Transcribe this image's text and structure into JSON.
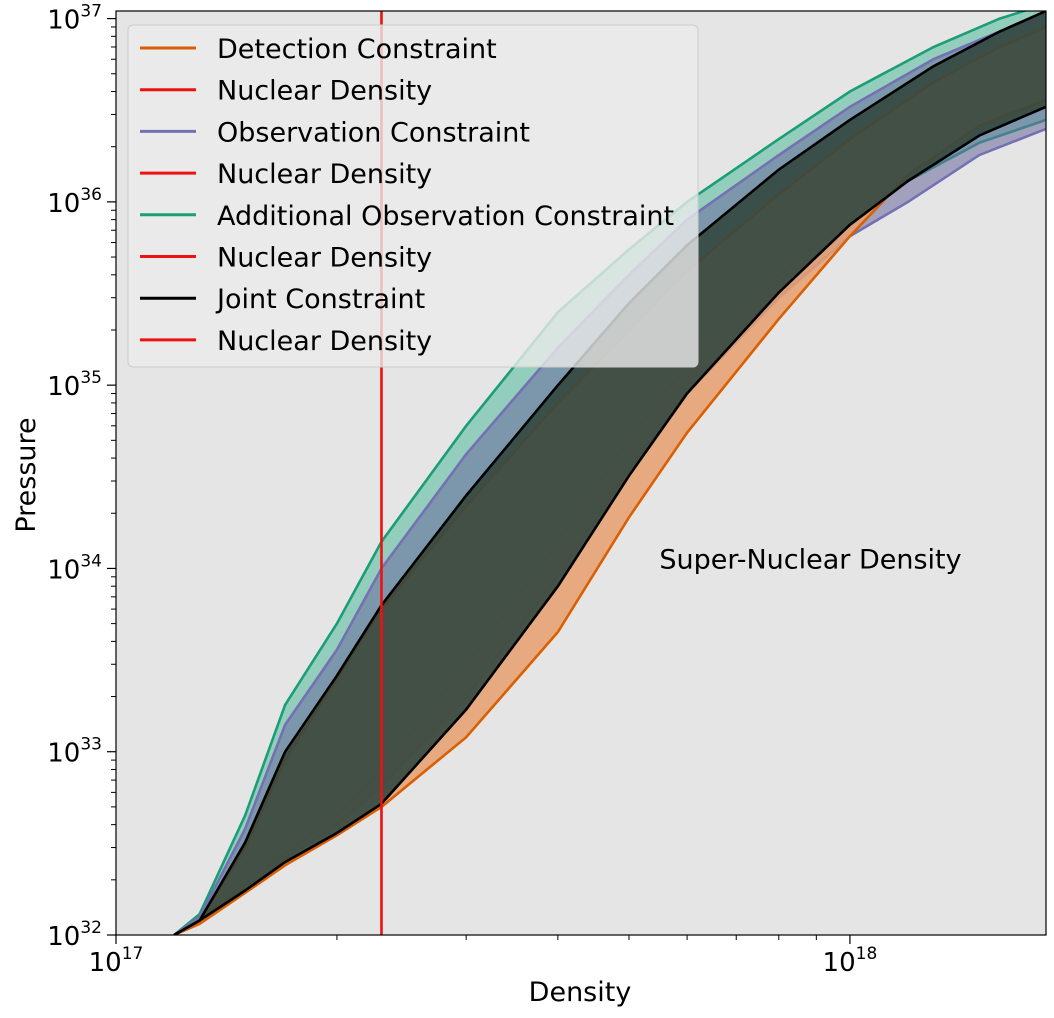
{
  "chart_data": {
    "type": "area",
    "xlabel": "Density",
    "ylabel": "Pressure",
    "xscale": "log",
    "yscale": "log",
    "xlim": [
      1e+17,
      1.85e+18
    ],
    "ylim": [
      1e+32,
      1.1e+37
    ],
    "x_ticks": [
      {
        "value": 1e+17,
        "base": "10",
        "exp": "17"
      },
      {
        "value": 1e+18,
        "base": "10",
        "exp": "18"
      }
    ],
    "y_ticks": [
      {
        "value": 1e+32,
        "base": "10",
        "exp": "32"
      },
      {
        "value": 1e+33,
        "base": "10",
        "exp": "33"
      },
      {
        "value": 1e+34,
        "base": "10",
        "exp": "34"
      },
      {
        "value": 1e+35,
        "base": "10",
        "exp": "35"
      },
      {
        "value": 1e+36,
        "base": "10",
        "exp": "36"
      },
      {
        "value": 1e+37,
        "base": "10",
        "exp": "37"
      }
    ],
    "background": "#e5e5e5",
    "grid": false,
    "legend_position": "top-left",
    "legend": [
      {
        "label": "Detection Constraint",
        "color": "#d95f02"
      },
      {
        "label": "Nuclear Density",
        "color": "#ee1111"
      },
      {
        "label": "Observation Constraint",
        "color": "#7570b3"
      },
      {
        "label": "Nuclear Density",
        "color": "#ee1111"
      },
      {
        "label": "Additional Observation Constraint",
        "color": "#1b9e77"
      },
      {
        "label": "Nuclear Density",
        "color": "#ee1111"
      },
      {
        "label": "Joint Constraint",
        "color": "#000000"
      },
      {
        "label": "Nuclear Density",
        "color": "#ee1111"
      }
    ],
    "vline": {
      "x": 2.3e+17,
      "color": "#ee1111"
    },
    "annotation": {
      "text": "Super-Nuclear Density",
      "x": 5.5e+17,
      "y": 1e+34
    },
    "series": [
      {
        "name": "Additional Observation Constraint",
        "color": "#1b9e77",
        "fill": "#66c2a5",
        "fill_opacity": 0.65,
        "upper": [
          [
            1.2e+17,
            1e+32
          ],
          [
            1.3e+17,
            1.3e+32
          ],
          [
            1.5e+17,
            4.5e+32
          ],
          [
            1.7e+17,
            1.8e+33
          ],
          [
            2e+17,
            5e+33
          ],
          [
            2.3e+17,
            1.4e+34
          ],
          [
            3e+17,
            6e+34
          ],
          [
            4e+17,
            2.5e+35
          ],
          [
            5e+17,
            5.5e+35
          ],
          [
            6e+17,
            1e+36
          ],
          [
            8e+17,
            2.2e+36
          ],
          [
            1e+18,
            4e+36
          ],
          [
            1.3e+18,
            7e+36
          ],
          [
            1.6e+18,
            1e+37
          ],
          [
            1.85e+18,
            1.2e+37
          ]
        ],
        "lower": [
          [
            1.85e+18,
            2.8e+36
          ],
          [
            1.5e+18,
            2.1e+36
          ],
          [
            1.2e+18,
            1.3e+36
          ],
          [
            1e+18,
            8e+35
          ],
          [
            8e+17,
            4e+35
          ],
          [
            6e+17,
            1.3e+35
          ],
          [
            5e+17,
            5e+34
          ],
          [
            4e+17,
            1.4e+34
          ],
          [
            3e+17,
            3e+33
          ],
          [
            2.3e+17,
            8e+32
          ],
          [
            2e+17,
            4.5e+32
          ],
          [
            1.7e+17,
            2.8e+32
          ],
          [
            1.5e+17,
            1.9e+32
          ],
          [
            1.3e+17,
            1.2e+32
          ],
          [
            1.2e+17,
            1e+32
          ]
        ]
      },
      {
        "name": "Observation Constraint",
        "color": "#7570b3",
        "fill": "#6a6a9e",
        "fill_opacity": 0.55,
        "upper": [
          [
            1.2e+17,
            1e+32
          ],
          [
            1.3e+17,
            1.25e+32
          ],
          [
            1.5e+17,
            3.8e+32
          ],
          [
            1.7e+17,
            1.4e+33
          ],
          [
            2e+17,
            3.6e+33
          ],
          [
            2.3e+17,
            1e+34
          ],
          [
            3e+17,
            4.2e+34
          ],
          [
            4e+17,
            1.6e+35
          ],
          [
            5e+17,
            4e+35
          ],
          [
            6e+17,
            8e+35
          ],
          [
            8e+17,
            1.8e+36
          ],
          [
            1e+18,
            3.3e+36
          ],
          [
            1.3e+18,
            6e+36
          ],
          [
            1.6e+18,
            8.5e+36
          ],
          [
            1.85e+18,
            1.05e+37
          ]
        ],
        "lower": [
          [
            1.85e+18,
            2.5e+36
          ],
          [
            1.5e+18,
            1.8e+36
          ],
          [
            1.2e+18,
            1e+36
          ],
          [
            1e+18,
            6.5e+35
          ],
          [
            8e+17,
            3e+35
          ],
          [
            6e+17,
            9e+34
          ],
          [
            5e+17,
            3.5e+34
          ],
          [
            4e+17,
            9e+33
          ],
          [
            3e+17,
            2e+33
          ],
          [
            2.3e+17,
            6.5e+32
          ],
          [
            2e+17,
            4e+32
          ],
          [
            1.7e+17,
            2.6e+32
          ],
          [
            1.5e+17,
            1.8e+32
          ],
          [
            1.3e+17,
            1.2e+32
          ],
          [
            1.2e+17,
            1e+32
          ]
        ]
      },
      {
        "name": "Detection Constraint",
        "color": "#d95f02",
        "fill": "#e8a06e",
        "fill_opacity": 0.85,
        "upper": [
          [
            1.2e+17,
            1e+32
          ],
          [
            1.3e+17,
            1.2e+32
          ],
          [
            1.5e+17,
            3e+32
          ],
          [
            1.7e+17,
            9e+32
          ],
          [
            2e+17,
            2.5e+33
          ],
          [
            2.3e+17,
            6e+33
          ],
          [
            3e+17,
            2.2e+34
          ],
          [
            4e+17,
            8e+34
          ],
          [
            5e+17,
            2e+35
          ],
          [
            6e+17,
            4.2e+35
          ],
          [
            8e+17,
            1.1e+36
          ],
          [
            1e+18,
            2.2e+36
          ],
          [
            1.3e+18,
            4.5e+36
          ],
          [
            1.6e+18,
            7e+36
          ],
          [
            1.85e+18,
            9e+36
          ]
        ],
        "lower": [
          [
            1.85e+18,
            3.6e+36
          ],
          [
            1.5e+18,
            2.6e+36
          ],
          [
            1.2e+18,
            1.4e+36
          ],
          [
            1e+18,
            6.5e+35
          ],
          [
            8e+17,
            2.3e+35
          ],
          [
            6e+17,
            5.5e+34
          ],
          [
            5e+17,
            1.9e+34
          ],
          [
            4e+17,
            4.5e+33
          ],
          [
            3e+17,
            1.2e+33
          ],
          [
            2.3e+17,
            5e+32
          ],
          [
            2e+17,
            3.5e+32
          ],
          [
            1.7e+17,
            2.4e+32
          ],
          [
            1.5e+17,
            1.7e+32
          ],
          [
            1.3e+17,
            1.15e+32
          ],
          [
            1.2e+17,
            1e+32
          ]
        ]
      },
      {
        "name": "Joint Constraint",
        "color": "#000000",
        "fill": "#33473f",
        "fill_opacity": 0.9,
        "upper": [
          [
            1.2e+17,
            1e+32
          ],
          [
            1.3e+17,
            1.2e+32
          ],
          [
            1.5e+17,
            3.2e+32
          ],
          [
            1.7e+17,
            1e+33
          ],
          [
            2e+17,
            2.6e+33
          ],
          [
            2.3e+17,
            6.3e+33
          ],
          [
            3e+17,
            2.5e+34
          ],
          [
            4e+17,
            1e+35
          ],
          [
            5e+17,
            2.8e+35
          ],
          [
            6e+17,
            5.8e+35
          ],
          [
            8e+17,
            1.5e+36
          ],
          [
            1e+18,
            2.8e+36
          ],
          [
            1.3e+18,
            5.5e+36
          ],
          [
            1.6e+18,
            8.5e+36
          ],
          [
            1.85e+18,
            1.1e+37
          ]
        ],
        "lower": [
          [
            1.85e+18,
            3.3e+36
          ],
          [
            1.5e+18,
            2.3e+36
          ],
          [
            1.2e+18,
            1.3e+36
          ],
          [
            1e+18,
            7.5e+35
          ],
          [
            8e+17,
            3.2e+35
          ],
          [
            6e+17,
            9e+34
          ],
          [
            5e+17,
            3.2e+34
          ],
          [
            4e+17,
            8e+33
          ],
          [
            3e+17,
            1.7e+33
          ],
          [
            2.3e+17,
            5.2e+32
          ],
          [
            2e+17,
            3.6e+32
          ],
          [
            1.7e+17,
            2.5e+32
          ],
          [
            1.5e+17,
            1.75e+32
          ],
          [
            1.3e+17,
            1.2e+32
          ],
          [
            1.2e+17,
            1e+32
          ]
        ]
      }
    ]
  }
}
